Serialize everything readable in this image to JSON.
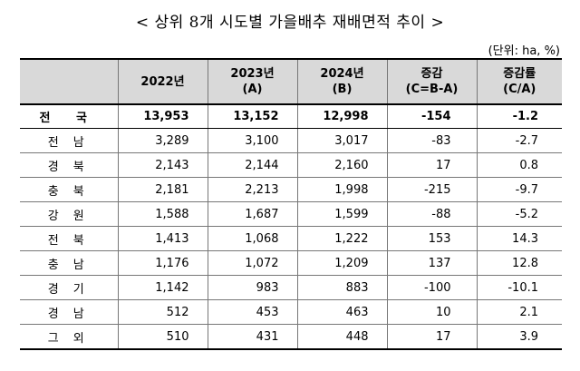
{
  "title": "< 상위 8개 시도별 가을배추 재배면적 추이 >",
  "unit": "(단위: ha, %)",
  "headers": {
    "region": "",
    "y2022": "2022년",
    "y2023_line1": "2023년",
    "y2023_line2": "(A)",
    "y2024_line1": "2024년",
    "y2024_line2": "(B)",
    "change_line1": "증감",
    "change_line2": "(C=B-A)",
    "rate_line1": "증감률",
    "rate_line2": "(C/A)"
  },
  "rows": [
    {
      "region": "전 국",
      "y2022": "13,953",
      "y2023": "13,152",
      "y2024": "12,998",
      "change": "-154",
      "rate": "-1.2"
    },
    {
      "region": "전 남",
      "y2022": "3,289",
      "y2023": "3,100",
      "y2024": "3,017",
      "change": "-83",
      "rate": "-2.7"
    },
    {
      "region": "경 북",
      "y2022": "2,143",
      "y2023": "2,144",
      "y2024": "2,160",
      "change": "17",
      "rate": "0.8"
    },
    {
      "region": "충 북",
      "y2022": "2,181",
      "y2023": "2,213",
      "y2024": "1,998",
      "change": "-215",
      "rate": "-9.7"
    },
    {
      "region": "강 원",
      "y2022": "1,588",
      "y2023": "1,687",
      "y2024": "1,599",
      "change": "-88",
      "rate": "-5.2"
    },
    {
      "region": "전 북",
      "y2022": "1,413",
      "y2023": "1,068",
      "y2024": "1,222",
      "change": "153",
      "rate": "14.3"
    },
    {
      "region": "충 남",
      "y2022": "1,176",
      "y2023": "1,072",
      "y2024": "1,209",
      "change": "137",
      "rate": "12.8"
    },
    {
      "region": "경 기",
      "y2022": "1,142",
      "y2023": "983",
      "y2024": "883",
      "change": "-100",
      "rate": "-10.1"
    },
    {
      "region": "경 남",
      "y2022": "512",
      "y2023": "453",
      "y2024": "463",
      "change": "10",
      "rate": "2.1"
    },
    {
      "region": "그 외",
      "y2022": "510",
      "y2023": "431",
      "y2024": "448",
      "change": "17",
      "rate": "3.9"
    }
  ]
}
